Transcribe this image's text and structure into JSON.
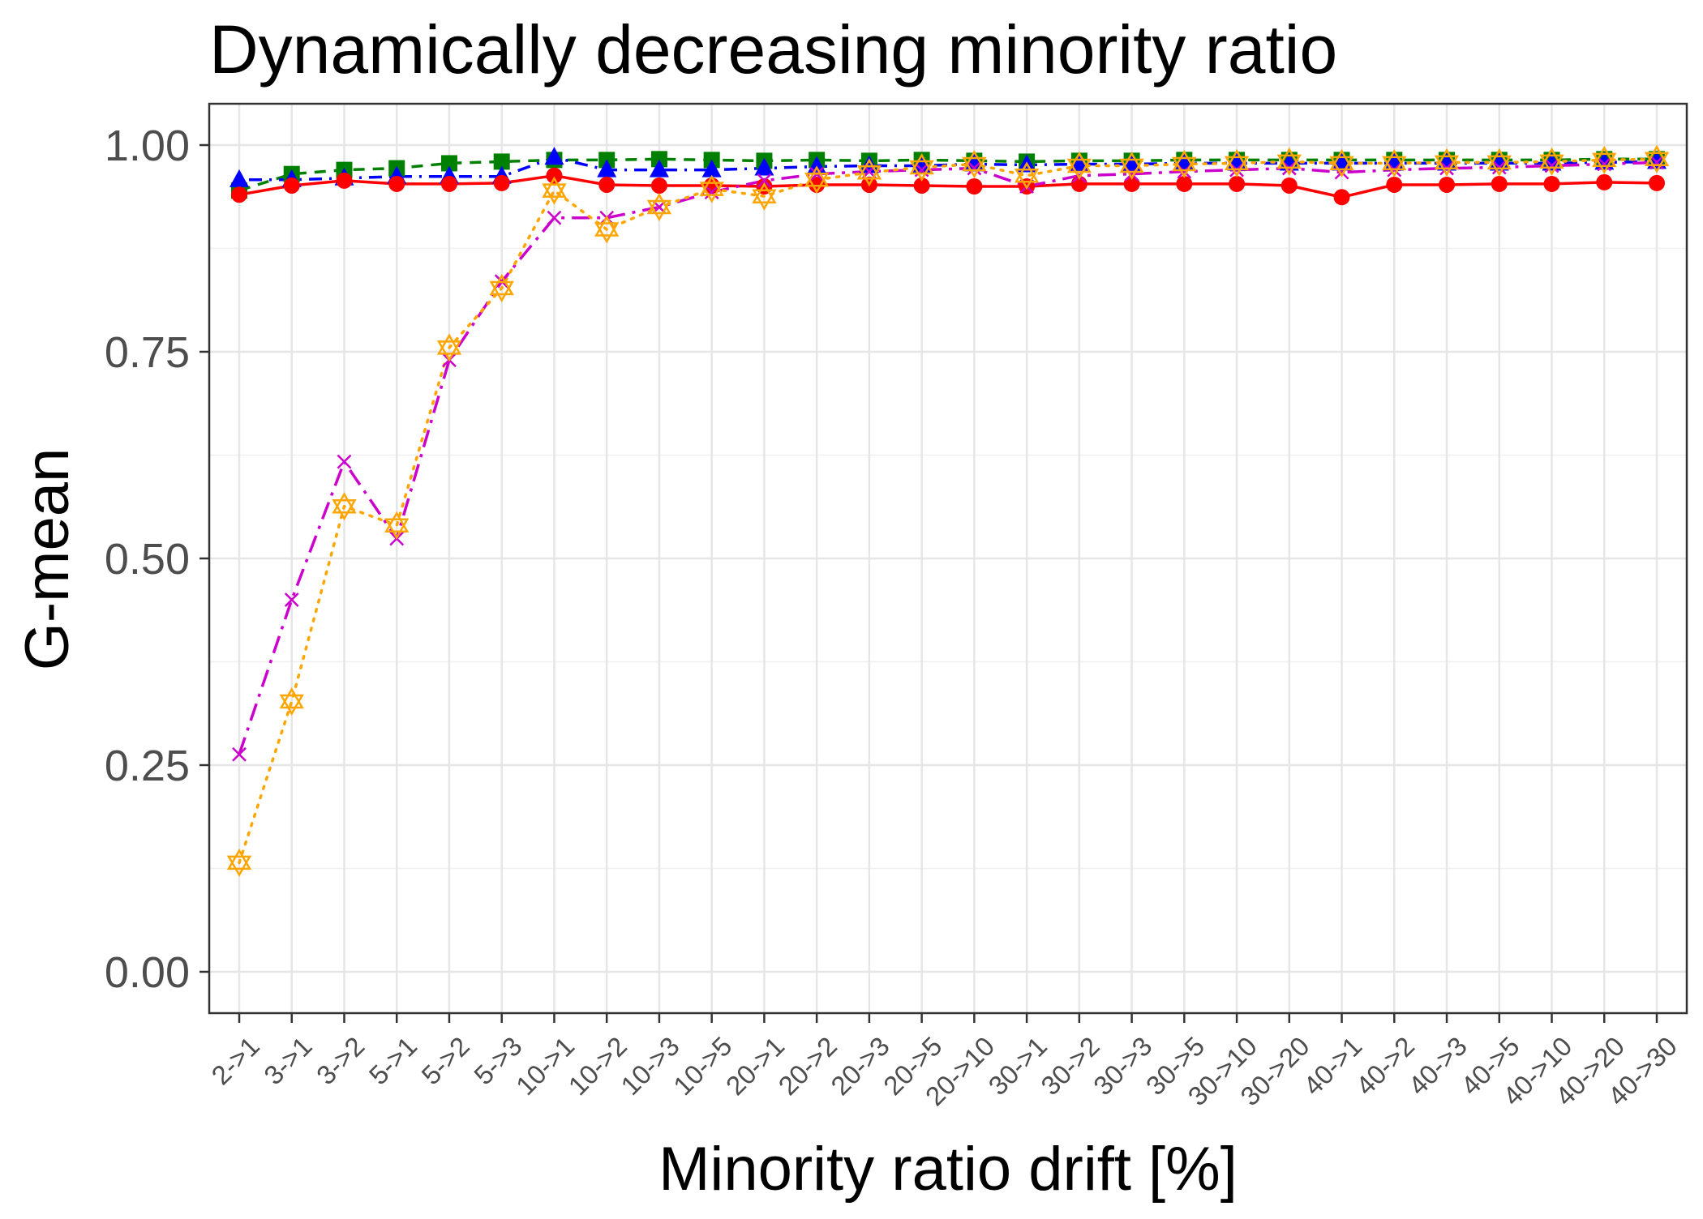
{
  "chart_data": {
    "type": "line",
    "title": "Dynamically decreasing minority ratio",
    "xlabel": "Minority ratio drift [%]",
    "ylabel": "G-mean",
    "ylim": [
      -0.05,
      1.05
    ],
    "yticks": [
      0.0,
      0.25,
      0.5,
      0.75,
      1.0
    ],
    "ytick_labels": [
      "0.00",
      "0.25",
      "0.50",
      "0.75",
      "1.00"
    ],
    "grid": true,
    "legend": "none",
    "categories": [
      "2->1",
      "3->1",
      "3->2",
      "5->1",
      "5->2",
      "5->3",
      "10->1",
      "10->2",
      "10->3",
      "10->5",
      "20->1",
      "20->2",
      "20->3",
      "20->5",
      "20->10",
      "30->1",
      "30->2",
      "30->3",
      "30->5",
      "30->10",
      "30->20",
      "40->1",
      "40->2",
      "40->3",
      "40->5",
      "40->10",
      "40->20",
      "40->30"
    ],
    "series": [
      {
        "color": "#008000",
        "marker": "square",
        "dash": "dashed",
        "values": [
          0.945,
          0.965,
          0.97,
          0.972,
          0.978,
          0.98,
          0.982,
          0.982,
          0.983,
          0.982,
          0.981,
          0.982,
          0.981,
          0.982,
          0.981,
          0.98,
          0.981,
          0.981,
          0.982,
          0.982,
          0.982,
          0.982,
          0.982,
          0.982,
          0.982,
          0.982,
          0.983,
          0.983
        ]
      },
      {
        "color": "#0000ff",
        "marker": "triangle",
        "dash": "dotdash",
        "values": [
          0.958,
          0.958,
          0.96,
          0.962,
          0.962,
          0.962,
          0.985,
          0.97,
          0.97,
          0.97,
          0.972,
          0.974,
          0.975,
          0.975,
          0.977,
          0.976,
          0.977,
          0.977,
          0.978,
          0.978,
          0.978,
          0.978,
          0.978,
          0.978,
          0.978,
          0.978,
          0.979,
          0.98
        ]
      },
      {
        "color": "#ff0000",
        "marker": "circle",
        "dash": "solid",
        "values": [
          0.94,
          0.951,
          0.957,
          0.953,
          0.953,
          0.954,
          0.963,
          0.952,
          0.951,
          0.951,
          0.95,
          0.952,
          0.952,
          0.951,
          0.95,
          0.95,
          0.953,
          0.953,
          0.953,
          0.953,
          0.951,
          0.937,
          0.952,
          0.952,
          0.953,
          0.953,
          0.955,
          0.954
        ]
      },
      {
        "color": "#cc00cc",
        "marker": "x",
        "dash": "longdash-dot",
        "values": [
          0.263,
          0.45,
          0.617,
          0.524,
          0.74,
          0.835,
          0.912,
          0.912,
          0.925,
          0.943,
          0.957,
          0.965,
          0.968,
          0.97,
          0.972,
          0.95,
          0.963,
          0.965,
          0.968,
          0.97,
          0.972,
          0.967,
          0.97,
          0.972,
          0.973,
          0.975,
          0.977,
          0.979
        ]
      },
      {
        "color": "#ffa500",
        "marker": "star-of-david",
        "dash": "dotted",
        "values": [
          0.132,
          0.327,
          0.563,
          0.54,
          0.755,
          0.827,
          0.945,
          0.898,
          0.925,
          0.947,
          0.938,
          0.958,
          0.967,
          0.973,
          0.977,
          0.963,
          0.975,
          0.975,
          0.977,
          0.978,
          0.98,
          0.978,
          0.978,
          0.979,
          0.979,
          0.98,
          0.982,
          0.983
        ]
      }
    ]
  }
}
